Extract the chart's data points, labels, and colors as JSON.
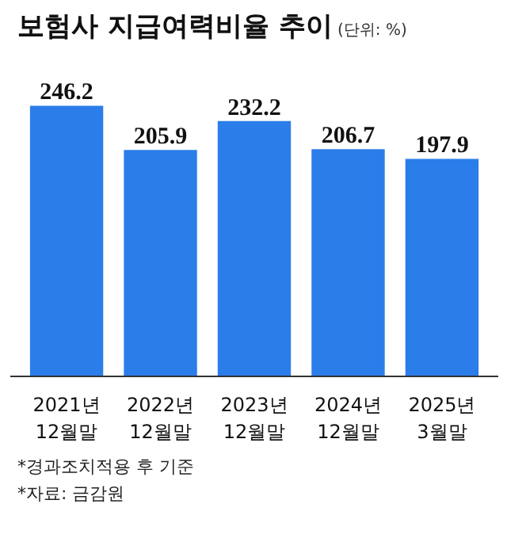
{
  "chart_data": {
    "type": "bar",
    "title": "보험사 지급여력비율 추이",
    "subtitle": "(단위: %)",
    "categories": [
      "2021년\n12월말",
      "2022년\n12월말",
      "2023년\n12월말",
      "2024년\n12월말",
      "2025년\n3월말"
    ],
    "values": [
      246.2,
      205.9,
      232.2,
      206.7,
      197.9
    ],
    "color": "#2b7de9",
    "data_labels": true,
    "grid": false,
    "annotations": [
      "*경과조치적용 후 기준",
      "*자료: 금감원"
    ]
  }
}
